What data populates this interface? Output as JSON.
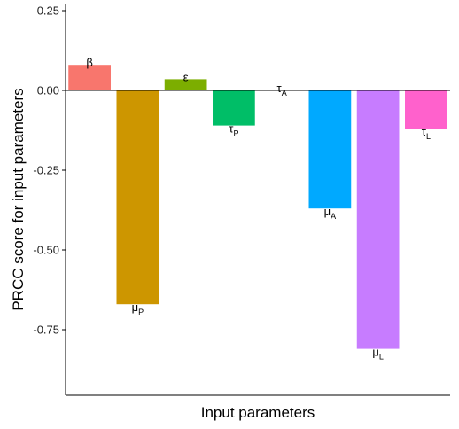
{
  "chart_data": {
    "type": "bar",
    "title": "",
    "xlabel": "Input parameters",
    "ylabel": "PRCC score for input parameters",
    "ylim": [
      -0.96,
      0.25
    ],
    "yticks": [
      0.25,
      0.0,
      -0.25,
      -0.5,
      -0.75
    ],
    "ytick_labels": [
      "0.25",
      "0.00",
      "-0.25",
      "-0.50",
      "-0.75"
    ],
    "grid": false,
    "legend": "none",
    "bars": [
      {
        "symbol": "β",
        "sub": "",
        "value": 0.08,
        "color": "#F8766D"
      },
      {
        "symbol": "μ",
        "sub": "P",
        "value": -0.67,
        "color": "#CD9600"
      },
      {
        "symbol": "ε",
        "sub": "",
        "value": 0.035,
        "color": "#7CAE00"
      },
      {
        "symbol": "τ",
        "sub": "P",
        "value": -0.11,
        "color": "#00BE67"
      },
      {
        "symbol": "τ",
        "sub": "A",
        "value": 0.0,
        "color": "#00BFC4"
      },
      {
        "symbol": "μ",
        "sub": "A",
        "value": -0.37,
        "color": "#00A9FF"
      },
      {
        "symbol": "μ",
        "sub": "L",
        "value": -0.81,
        "color": "#C77CFF"
      },
      {
        "symbol": "τ",
        "sub": "L",
        "value": -0.12,
        "color": "#FF61CC"
      }
    ]
  }
}
